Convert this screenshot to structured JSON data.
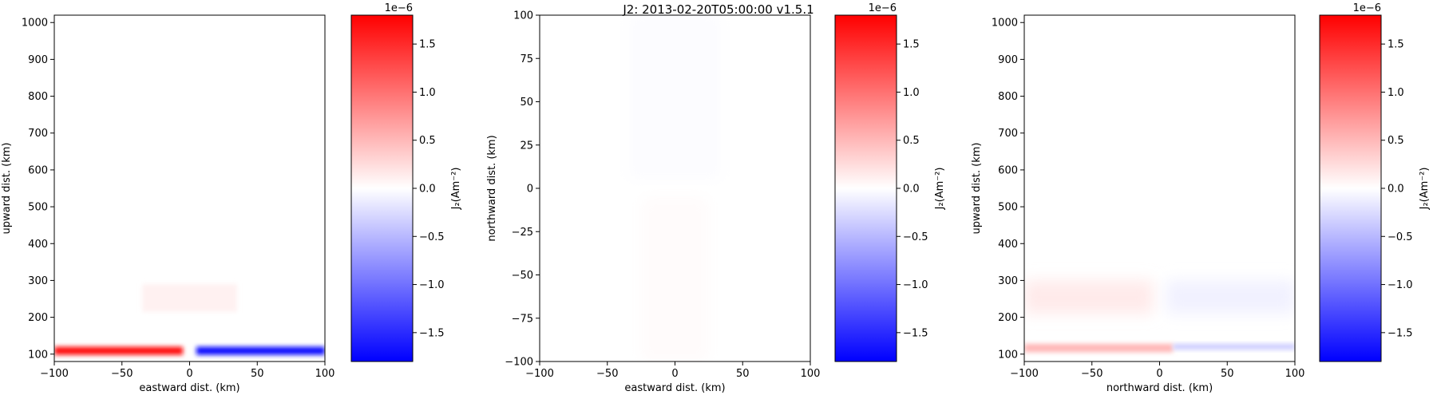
{
  "suptitle": "J2: 2013-02-20T05:00:00  v1.5.1",
  "colormap": {
    "neg": "#0000ff",
    "mid": "#ffffff",
    "pos": "#ff0000"
  },
  "chart_data": [
    {
      "type": "heatmap",
      "xlabel": "eastward dist. (km)",
      "ylabel": "upward dist. (km)",
      "xlim": [
        -100,
        100
      ],
      "ylim": [
        80,
        1020
      ],
      "xticks": [
        "−100",
        "−50",
        "0",
        "50",
        "100"
      ],
      "xtick_values": [
        -100,
        -50,
        0,
        50,
        100
      ],
      "yticks": [
        "100",
        "200",
        "300",
        "400",
        "500",
        "600",
        "700",
        "800",
        "900",
        "1000"
      ],
      "ytick_values": [
        100,
        200,
        300,
        400,
        500,
        600,
        700,
        800,
        900,
        1000
      ],
      "features": [
        {
          "x": [
            -100,
            -5
          ],
          "y": [
            98,
            120
          ],
          "value": 1.7e-06
        },
        {
          "x": [
            5,
            100
          ],
          "y": [
            98,
            120
          ],
          "value": -1.7e-06
        },
        {
          "x": [
            -35,
            35
          ],
          "y": [
            215,
            290
          ],
          "value": 1e-07
        }
      ],
      "colorbar": {
        "label": "J₂(Am⁻²)",
        "exponent": "1e−6",
        "range": [
          -1.8,
          1.8
        ],
        "ticks": [
          "1.5",
          "1.0",
          "0.5",
          "0.0",
          "−0.5",
          "−1.0",
          "−1.5"
        ],
        "tick_values": [
          1.5,
          1.0,
          0.5,
          0.0,
          -0.5,
          -1.0,
          -1.5
        ]
      }
    },
    {
      "type": "heatmap",
      "xlabel": "eastward dist. (km)",
      "ylabel": "northward dist. (km)",
      "xlim": [
        -100,
        100
      ],
      "ylim": [
        -100,
        100
      ],
      "xticks": [
        "−100",
        "−50",
        "0",
        "50",
        "100"
      ],
      "xtick_values": [
        -100,
        -50,
        0,
        50,
        100
      ],
      "yticks": [
        "100",
        "75",
        "50",
        "25",
        "0",
        "−25",
        "−50",
        "−75",
        "−100"
      ],
      "ytick_values": [
        100,
        75,
        50,
        25,
        0,
        -25,
        -50,
        -75,
        -100
      ],
      "features": [
        {
          "x": [
            -35,
            35
          ],
          "y": [
            5,
            100
          ],
          "value": -2e-08
        },
        {
          "x": [
            -25,
            25
          ],
          "y": [
            -100,
            -5
          ],
          "value": 3e-08
        }
      ],
      "colorbar": {
        "label": "J₂(Am⁻²)",
        "exponent": "1e−6",
        "range": [
          -1.8,
          1.8
        ],
        "ticks": [
          "1.5",
          "1.0",
          "0.5",
          "0.0",
          "−0.5",
          "−1.0",
          "−1.5"
        ],
        "tick_values": [
          1.5,
          1.0,
          0.5,
          0.0,
          -0.5,
          -1.0,
          -1.5
        ]
      }
    },
    {
      "type": "heatmap",
      "xlabel": "northward dist. (km)",
      "ylabel": "upward dist. (km)",
      "xlim": [
        -100,
        100
      ],
      "ylim": [
        80,
        1020
      ],
      "xticks": [
        "−100",
        "−50",
        "0",
        "50",
        "100"
      ],
      "xtick_values": [
        -100,
        -50,
        0,
        50,
        100
      ],
      "yticks": [
        "100",
        "200",
        "300",
        "400",
        "500",
        "600",
        "700",
        "800",
        "900",
        "1000"
      ],
      "ytick_values": [
        100,
        200,
        300,
        400,
        500,
        600,
        700,
        800,
        900,
        1000
      ],
      "features": [
        {
          "x": [
            -100,
            -5
          ],
          "y": [
            210,
            300
          ],
          "value": 1.5e-07
        },
        {
          "x": [
            5,
            100
          ],
          "y": [
            210,
            300
          ],
          "value": -1e-07
        },
        {
          "x": [
            -100,
            10
          ],
          "y": [
            105,
            128
          ],
          "value": 5e-07
        },
        {
          "x": [
            10,
            100
          ],
          "y": [
            112,
            128
          ],
          "value": -3.5e-07
        }
      ],
      "colorbar": {
        "label": "J₂(Am⁻²)",
        "exponent": "1e−6",
        "range": [
          -1.8,
          1.8
        ],
        "ticks": [
          "1.5",
          "1.0",
          "0.5",
          "0.0",
          "−0.5",
          "−1.0",
          "−1.5"
        ],
        "tick_values": [
          1.5,
          1.0,
          0.5,
          0.0,
          -0.5,
          -1.0,
          -1.5
        ]
      }
    }
  ]
}
